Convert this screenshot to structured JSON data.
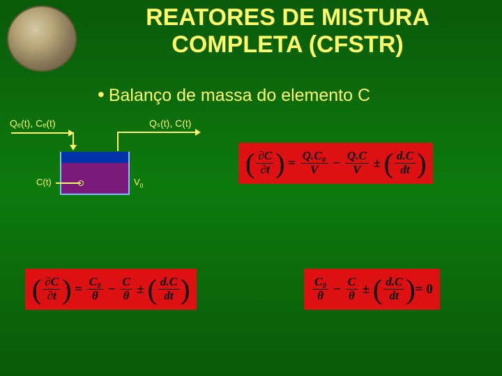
{
  "title": "REATORES DE MISTURA COMPLETA (CFSTR)",
  "bullet": "Balanço de massa do elemento C",
  "labels": {
    "inflow": "Qₑ(t), Cₑ(t)",
    "outflow": "Qₛ(t), C(t)",
    "ct": "C(t)",
    "v0": "V₀"
  },
  "equations": {
    "eq1": {
      "lhs_num": "∂C",
      "lhs_den": "∂t",
      "rhs1_num": "Q.C₀",
      "rhs1_den": "V",
      "rhs2_num": "Q.C",
      "rhs2_den": "V",
      "rhs3_num": "d.C",
      "rhs3_den": "dt"
    },
    "eq2": {
      "lhs_num": "∂C",
      "lhs_den": "∂t",
      "rhs1_num": "C₀",
      "rhs1_den": "θ",
      "rhs2_num": "C",
      "rhs2_den": "θ",
      "rhs3_num": "d.C",
      "rhs3_den": "dt"
    },
    "eq3": {
      "rhs1_num": "C₀",
      "rhs1_den": "θ",
      "rhs2_num": "C",
      "rhs2_den": "θ",
      "rhs3_num": "d.C",
      "rhs3_den": "dt",
      "zero": "= 0"
    }
  },
  "colors": {
    "accent": "#ffff66",
    "eq_bg": "#dd1111",
    "tank_border": "#88bbff",
    "tank_bg": "#0033aa",
    "tank_fill": "#7a1a7a"
  }
}
